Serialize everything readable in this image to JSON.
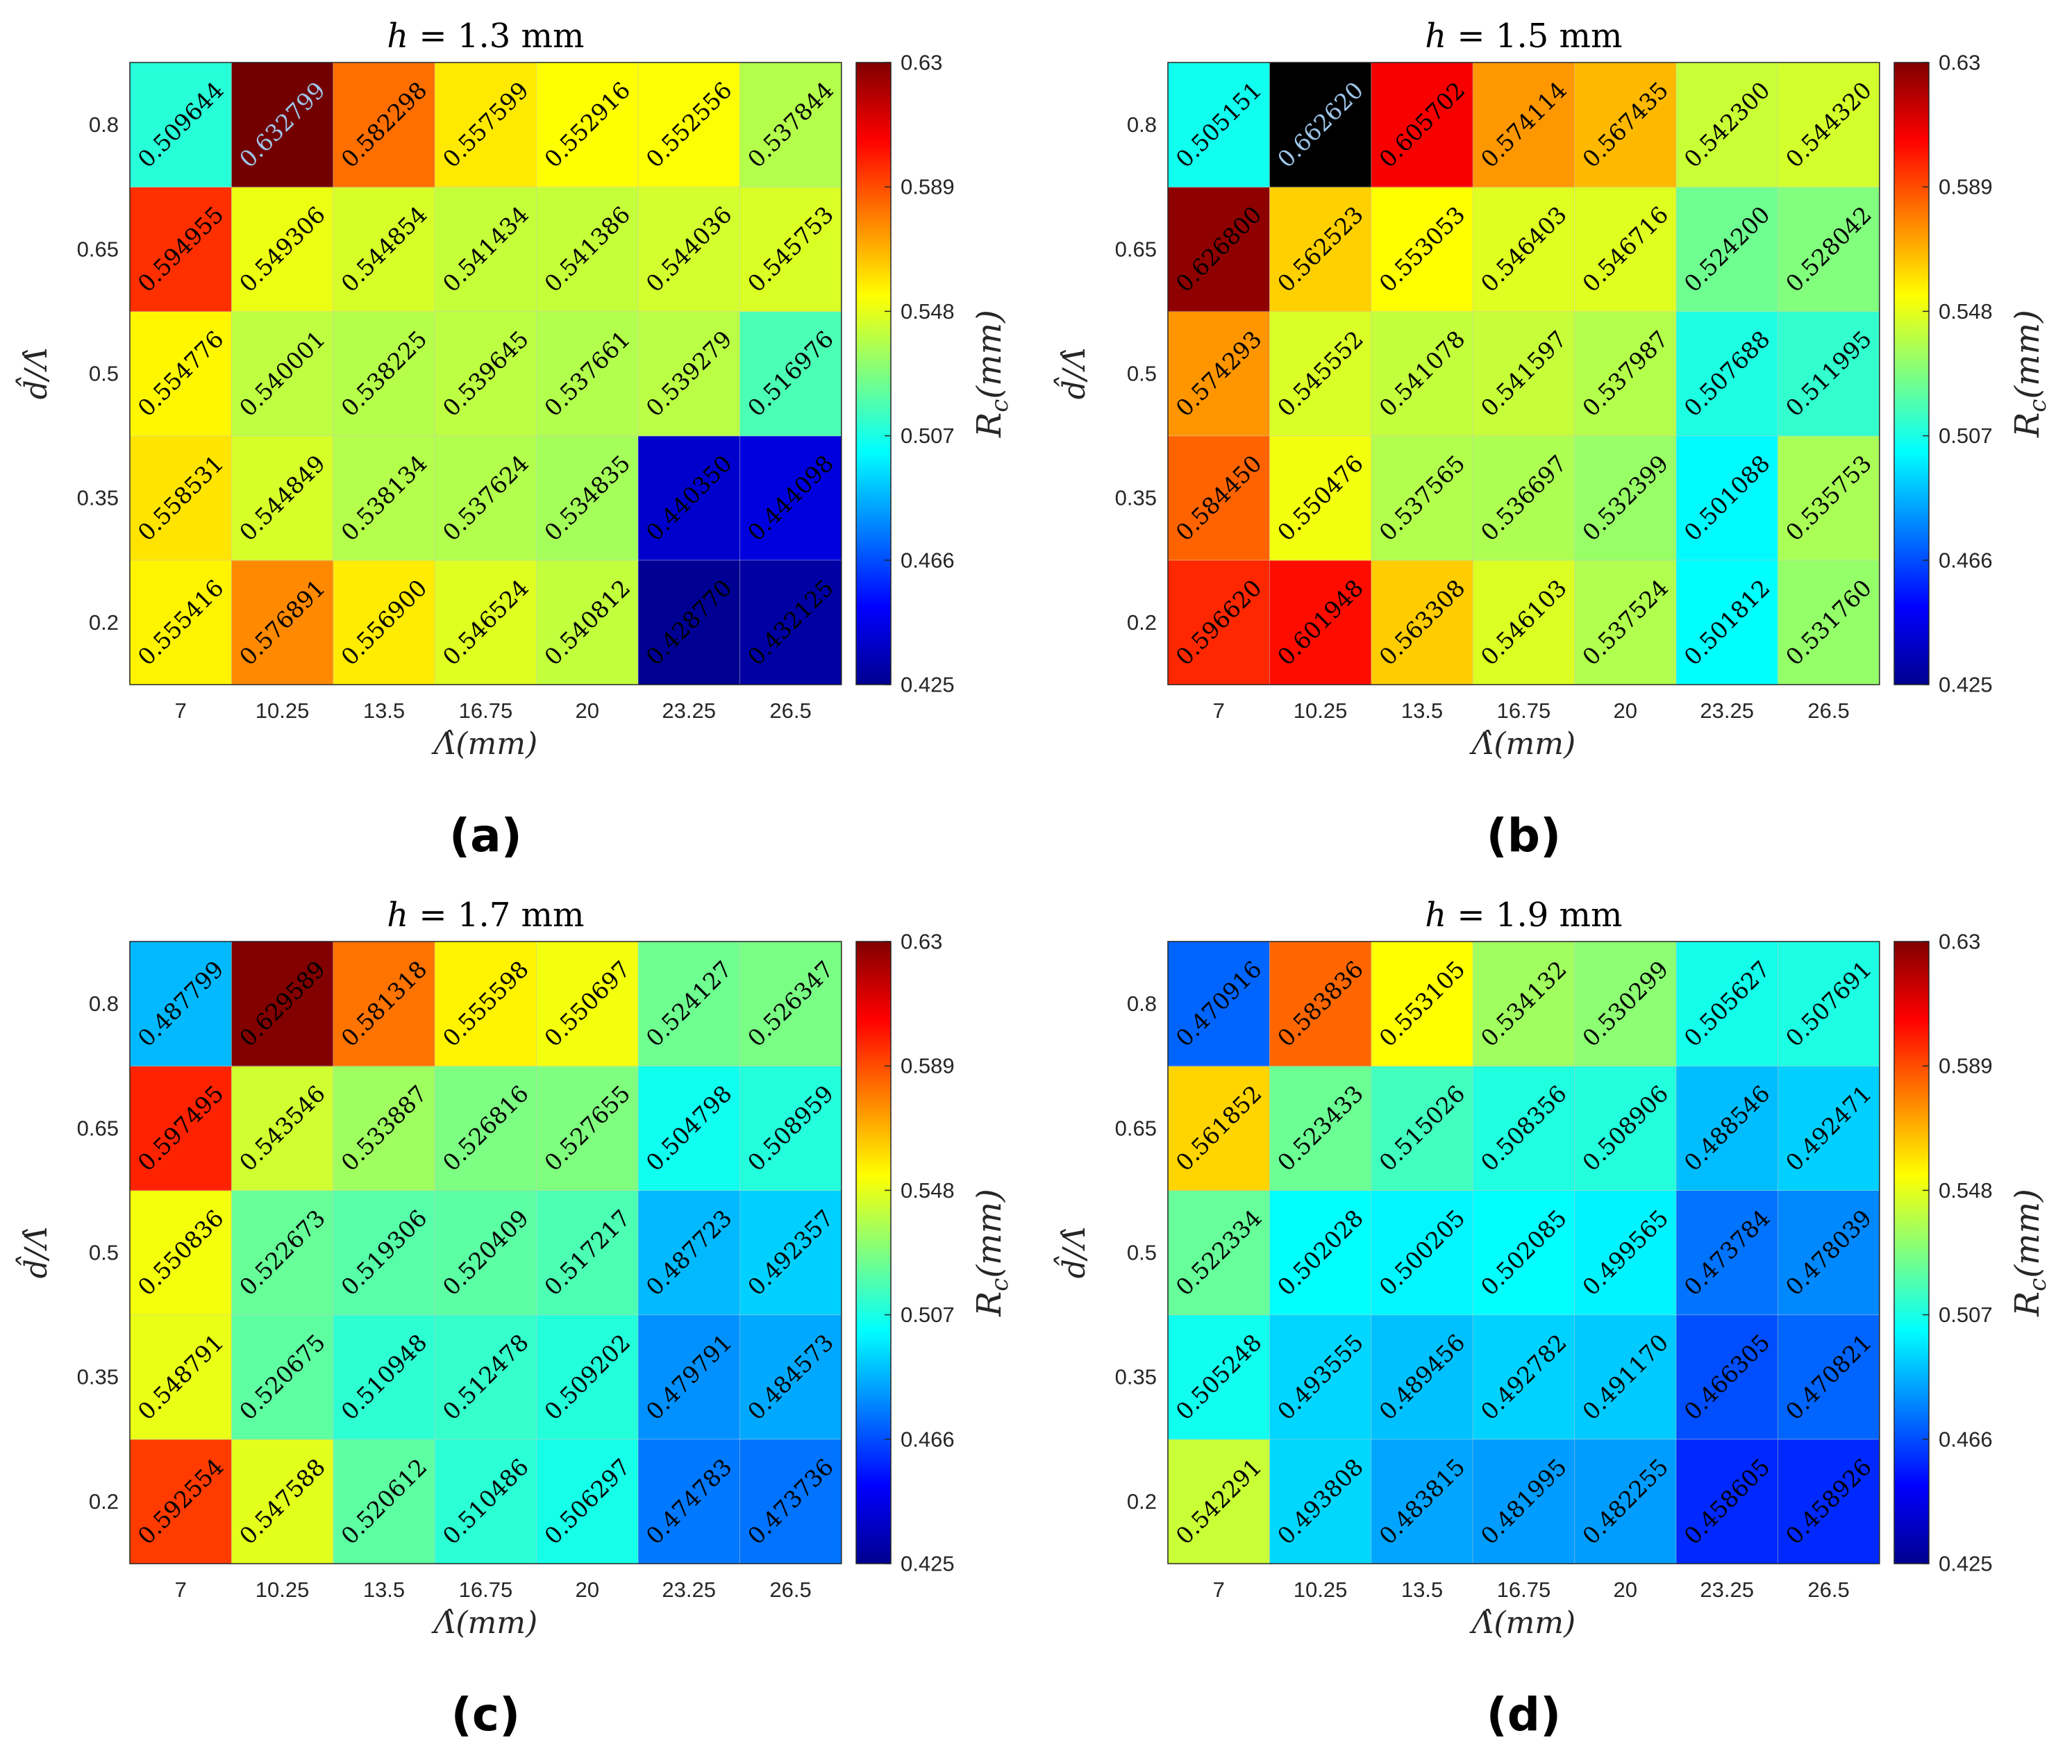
{
  "colors": {
    "default_text": "#000000",
    "highlight_text": "#9ec6ea",
    "grid": "#c8c8c8",
    "axis": "#262626"
  },
  "colormap": "jet",
  "colorbar": {
    "min": 0.425,
    "max": 0.63,
    "ticks": [
      "0.425",
      "0.466",
      "0.507",
      "0.548",
      "0.589",
      "0.63"
    ],
    "label": "R_c(mm)",
    "label_main": "R",
    "label_sub": "c",
    "label_rest": "(mm)"
  },
  "chart_data": [
    {
      "type": "heatmap",
      "panel": "(a)",
      "title": "h = 1.3 mm",
      "title_var": "h",
      "title_rest": " = 1.3 mm",
      "xlabel": "Λ̂(mm)",
      "ylabel": "d̂/Λ̂",
      "x": [
        "7",
        "10.25",
        "13.5",
        "16.75",
        "20",
        "23.25",
        "26.5"
      ],
      "y": [
        "0.2",
        "0.35",
        "0.5",
        "0.65",
        "0.8"
      ],
      "z": [
        [
          0.555416,
          0.576891,
          0.5569,
          0.546524,
          0.540812,
          0.42877,
          0.432125
        ],
        [
          0.558531,
          0.544849,
          0.538134,
          0.537624,
          0.534835,
          0.44035,
          0.444098
        ],
        [
          0.554776,
          0.540001,
          0.538225,
          0.539645,
          0.537661,
          0.539279,
          0.516976
        ],
        [
          0.594955,
          0.549306,
          0.544854,
          0.541434,
          0.541386,
          0.544036,
          0.545753
        ],
        [
          0.509644,
          0.632799,
          0.582298,
          0.557599,
          0.552916,
          0.552556,
          0.537844
        ]
      ],
      "labels": [
        [
          "0.555416",
          "0.576891",
          "0.556900",
          "0.546524",
          "0.540812",
          "0.428770",
          "0.432125"
        ],
        [
          "0.558531",
          "0.544849",
          "0.538134",
          "0.537624",
          "0.534835",
          "0.440350",
          "0.444098"
        ],
        [
          "0.554776",
          "0.540001",
          "0.538225",
          "0.539645",
          "0.537661",
          "0.539279",
          "0.516976"
        ],
        [
          "0.594955",
          "0.549306",
          "0.544854",
          "0.541434",
          "0.541386",
          "0.544036",
          "0.545753"
        ],
        [
          "0.509644",
          "0.632799",
          "0.582298",
          "0.557599",
          "0.552916",
          "0.552556",
          "0.537844"
        ]
      ],
      "highlight": [
        [
          4,
          1
        ]
      ]
    },
    {
      "type": "heatmap",
      "panel": "(b)",
      "title": "h = 1.5 mm",
      "title_var": "h",
      "title_rest": " = 1.5 mm",
      "xlabel": "Λ̂(mm)",
      "ylabel": "d̂/Λ̂",
      "x": [
        "7",
        "10.25",
        "13.5",
        "16.75",
        "20",
        "23.25",
        "26.5"
      ],
      "y": [
        "0.2",
        "0.35",
        "0.5",
        "0.65",
        "0.8"
      ],
      "z": [
        [
          0.59662,
          0.601948,
          0.563308,
          0.546103,
          0.537524,
          0.501812,
          0.53176
        ],
        [
          0.58445,
          0.550476,
          0.537565,
          0.536697,
          0.532399,
          0.501088,
          0.535753
        ],
        [
          0.574293,
          0.545552,
          0.541078,
          0.541597,
          0.537987,
          0.507688,
          0.511995
        ],
        [
          0.6268,
          0.562523,
          0.553053,
          0.546403,
          0.546716,
          0.5242,
          0.528042
        ],
        [
          0.505151,
          0.66262,
          0.605702,
          0.574114,
          0.567435,
          0.5423,
          0.54432
        ]
      ],
      "labels": [
        [
          "0.596620",
          "0.601948",
          "0.563308",
          "0.546103",
          "0.537524",
          "0.501812",
          "0.531760"
        ],
        [
          "0.584450",
          "0.550476",
          "0.537565",
          "0.536697",
          "0.532399",
          "0.501088",
          "0.535753"
        ],
        [
          "0.574293",
          "0.545552",
          "0.541078",
          "0.541597",
          "0.537987",
          "0.507688",
          "0.511995"
        ],
        [
          "0.626800",
          "0.562523",
          "0.553053",
          "0.546403",
          "0.546716",
          "0.524200",
          "0.528042"
        ],
        [
          "0.505151",
          "0.662620",
          "0.605702",
          "0.574114",
          "0.567435",
          "0.542300",
          "0.544320"
        ]
      ],
      "highlight": [
        [
          4,
          1
        ]
      ]
    },
    {
      "type": "heatmap",
      "panel": "(c)",
      "title": "h = 1.7 mm",
      "title_var": "h",
      "title_rest": " = 1.7 mm",
      "xlabel": "Λ̂(mm)",
      "ylabel": "d̂/Λ̂",
      "x": [
        "7",
        "10.25",
        "13.5",
        "16.75",
        "20",
        "23.25",
        "26.5"
      ],
      "y": [
        "0.2",
        "0.35",
        "0.5",
        "0.65",
        "0.8"
      ],
      "z": [
        [
          0.592554,
          0.547588,
          0.520612,
          0.510486,
          0.506297,
          0.474783,
          0.473736
        ],
        [
          0.548791,
          0.520675,
          0.510948,
          0.512478,
          0.509202,
          0.479791,
          0.484573
        ],
        [
          0.550836,
          0.522673,
          0.519306,
          0.520409,
          0.517217,
          0.487723,
          0.492357
        ],
        [
          0.597495,
          0.543546,
          0.533887,
          0.526816,
          0.527655,
          0.504798,
          0.508959
        ],
        [
          0.487799,
          0.629589,
          0.581318,
          0.555598,
          0.550697,
          0.524127,
          0.526347
        ]
      ],
      "labels": [
        [
          "0.592554",
          "0.547588",
          "0.520612",
          "0.510486",
          "0.506297",
          "0.474783",
          "0.473736"
        ],
        [
          "0.548791",
          "0.520675",
          "0.510948",
          "0.512478",
          "0.509202",
          "0.479791",
          "0.484573"
        ],
        [
          "0.550836",
          "0.522673",
          "0.519306",
          "0.520409",
          "0.517217",
          "0.487723",
          "0.492357"
        ],
        [
          "0.597495",
          "0.543546",
          "0.533887",
          "0.526816",
          "0.527655",
          "0.504798",
          "0.508959"
        ],
        [
          "0.487799",
          "0.629589",
          "0.581318",
          "0.555598",
          "0.550697",
          "0.524127",
          "0.526347"
        ]
      ],
      "highlight": []
    },
    {
      "type": "heatmap",
      "panel": "(d)",
      "title": "h = 1.9 mm",
      "title_var": "h",
      "title_rest": " = 1.9 mm",
      "xlabel": "Λ̂(mm)",
      "ylabel": "d̂/Λ̂",
      "x": [
        "7",
        "10.25",
        "13.5",
        "16.75",
        "20",
        "23.25",
        "26.5"
      ],
      "y": [
        "0.2",
        "0.35",
        "0.5",
        "0.65",
        "0.8"
      ],
      "z": [
        [
          0.542291,
          0.493808,
          0.483815,
          0.481995,
          0.482255,
          0.458605,
          0.458926
        ],
        [
          0.505248,
          0.493555,
          0.489456,
          0.492782,
          0.49117,
          0.466305,
          0.470821
        ],
        [
          0.522334,
          0.502028,
          0.500205,
          0.502085,
          0.499565,
          0.473784,
          0.478039
        ],
        [
          0.561852,
          0.523433,
          0.515026,
          0.508356,
          0.508906,
          0.488546,
          0.492471
        ],
        [
          0.470916,
          0.583836,
          0.553105,
          0.534132,
          0.530299,
          0.505627,
          0.507691
        ]
      ],
      "labels": [
        [
          "0.542291",
          "0.493808",
          "0.483815",
          "0.481995",
          "0.482255",
          "0.458605",
          "0.458926"
        ],
        [
          "0.505248",
          "0.493555",
          "0.489456",
          "0.492782",
          "0.491170",
          "0.466305",
          "0.470821"
        ],
        [
          "0.522334",
          "0.502028",
          "0.500205",
          "0.502085",
          "0.499565",
          "0.473784",
          "0.478039"
        ],
        [
          "0.561852",
          "0.523433",
          "0.515026",
          "0.508356",
          "0.508906",
          "0.488546",
          "0.492471"
        ],
        [
          "0.470916",
          "0.583836",
          "0.553105",
          "0.534132",
          "0.530299",
          "0.505627",
          "0.507691"
        ]
      ],
      "highlight": []
    }
  ]
}
